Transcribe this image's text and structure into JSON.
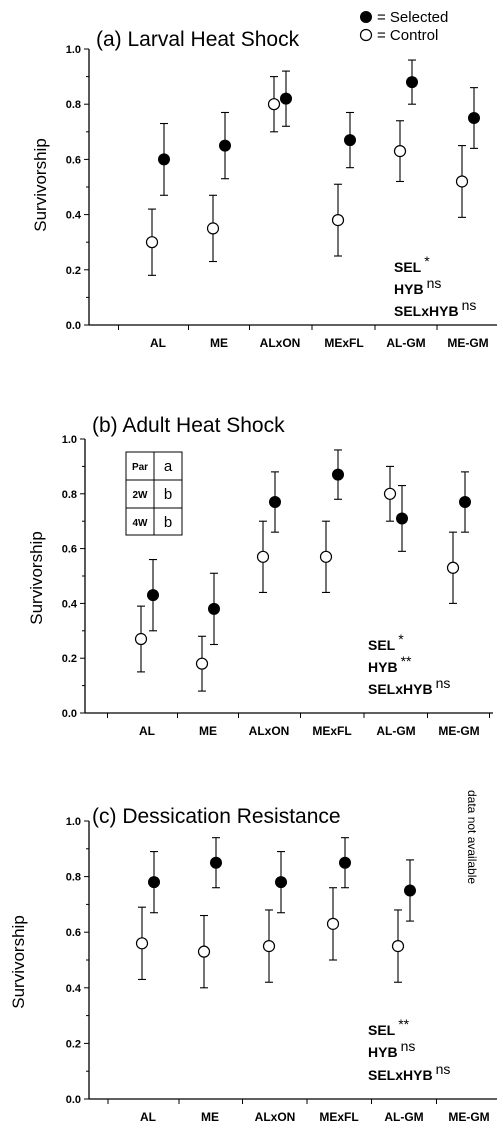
{
  "legend": {
    "selected_label": "= Selected",
    "control_label": "= Control"
  },
  "chart_data": [
    {
      "type": "scatter",
      "title": "(a) Larval Heat Shock",
      "ylabel": "Survivorship",
      "ylim": [
        0,
        1.0
      ],
      "yticks": [
        "0.0",
        "0.2",
        "0.4",
        "0.6",
        "0.8",
        "1.0"
      ],
      "categories": [
        "AL",
        "ME",
        "ALxON",
        "MExFL",
        "AL-GM",
        "ME-GM"
      ],
      "series": [
        {
          "name": "Selected",
          "values": [
            0.6,
            0.65,
            0.82,
            0.67,
            0.88,
            0.75
          ],
          "err_low": [
            0.47,
            0.53,
            0.72,
            0.57,
            0.8,
            0.64
          ],
          "err_high": [
            0.73,
            0.77,
            0.92,
            0.77,
            0.96,
            0.86
          ]
        },
        {
          "name": "Control",
          "values": [
            0.3,
            0.35,
            0.8,
            0.38,
            0.63,
            0.52
          ],
          "err_low": [
            0.18,
            0.23,
            0.7,
            0.25,
            0.52,
            0.39
          ],
          "err_high": [
            0.42,
            0.47,
            0.9,
            0.51,
            0.74,
            0.65
          ]
        }
      ],
      "stats": [
        {
          "label": "SEL",
          "sig": "*"
        },
        {
          "label": "HYB",
          "sig": "ns"
        },
        {
          "label": "SELxHYB",
          "sig": "ns"
        }
      ]
    },
    {
      "type": "scatter",
      "title": "(b) Adult Heat Shock",
      "ylabel": "Survivorship",
      "ylim": [
        0,
        1.0
      ],
      "yticks": [
        "0.0",
        "0.2",
        "0.4",
        "0.6",
        "0.8",
        "1.0"
      ],
      "categories": [
        "AL",
        "ME",
        "ALxON",
        "MExFL",
        "AL-GM",
        "ME-GM"
      ],
      "series": [
        {
          "name": "Selected",
          "values": [
            0.43,
            0.38,
            0.77,
            0.87,
            0.71,
            0.77
          ],
          "err_low": [
            0.3,
            0.25,
            0.66,
            0.78,
            0.59,
            0.66
          ],
          "err_high": [
            0.56,
            0.51,
            0.88,
            0.96,
            0.83,
            0.88
          ]
        },
        {
          "name": "Control",
          "values": [
            0.27,
            0.18,
            0.57,
            0.57,
            0.8,
            0.53
          ],
          "err_low": [
            0.15,
            0.08,
            0.44,
            0.44,
            0.7,
            0.4
          ],
          "err_high": [
            0.39,
            0.28,
            0.7,
            0.7,
            0.9,
            0.66
          ]
        }
      ],
      "inset_table": [
        {
          "group": "Par",
          "letter": "a"
        },
        {
          "group": "2W",
          "letter": "b"
        },
        {
          "group": "4W",
          "letter": "b"
        }
      ],
      "stats": [
        {
          "label": "SEL",
          "sig": "*"
        },
        {
          "label": "HYB",
          "sig": "**"
        },
        {
          "label": "SELxHYB",
          "sig": "ns"
        }
      ]
    },
    {
      "type": "scatter",
      "title": "(c) Dessication Resistance",
      "ylabel": "Survivorship",
      "ylim": [
        0,
        1.0
      ],
      "yticks": [
        "0.0",
        "0.2",
        "0.4",
        "0.6",
        "0.8",
        "1.0"
      ],
      "categories": [
        "AL",
        "ME",
        "ALxON",
        "MExFL",
        "AL-GM",
        "ME-GM"
      ],
      "series": [
        {
          "name": "Selected",
          "values": [
            0.78,
            0.85,
            0.78,
            0.85,
            0.75,
            null
          ],
          "err_low": [
            0.67,
            0.76,
            0.67,
            0.76,
            0.64,
            null
          ],
          "err_high": [
            0.89,
            0.94,
            0.89,
            0.94,
            0.86,
            null
          ]
        },
        {
          "name": "Control",
          "values": [
            0.56,
            0.53,
            0.55,
            0.63,
            0.55,
            null
          ],
          "err_low": [
            0.43,
            0.4,
            0.42,
            0.5,
            0.42,
            null
          ],
          "err_high": [
            0.69,
            0.66,
            0.68,
            0.76,
            0.68,
            null
          ]
        }
      ],
      "note": "data not available",
      "stats": [
        {
          "label": "SEL",
          "sig": "**"
        },
        {
          "label": "HYB",
          "sig": "ns"
        },
        {
          "label": "SELxHYB",
          "sig": "ns"
        }
      ]
    }
  ]
}
